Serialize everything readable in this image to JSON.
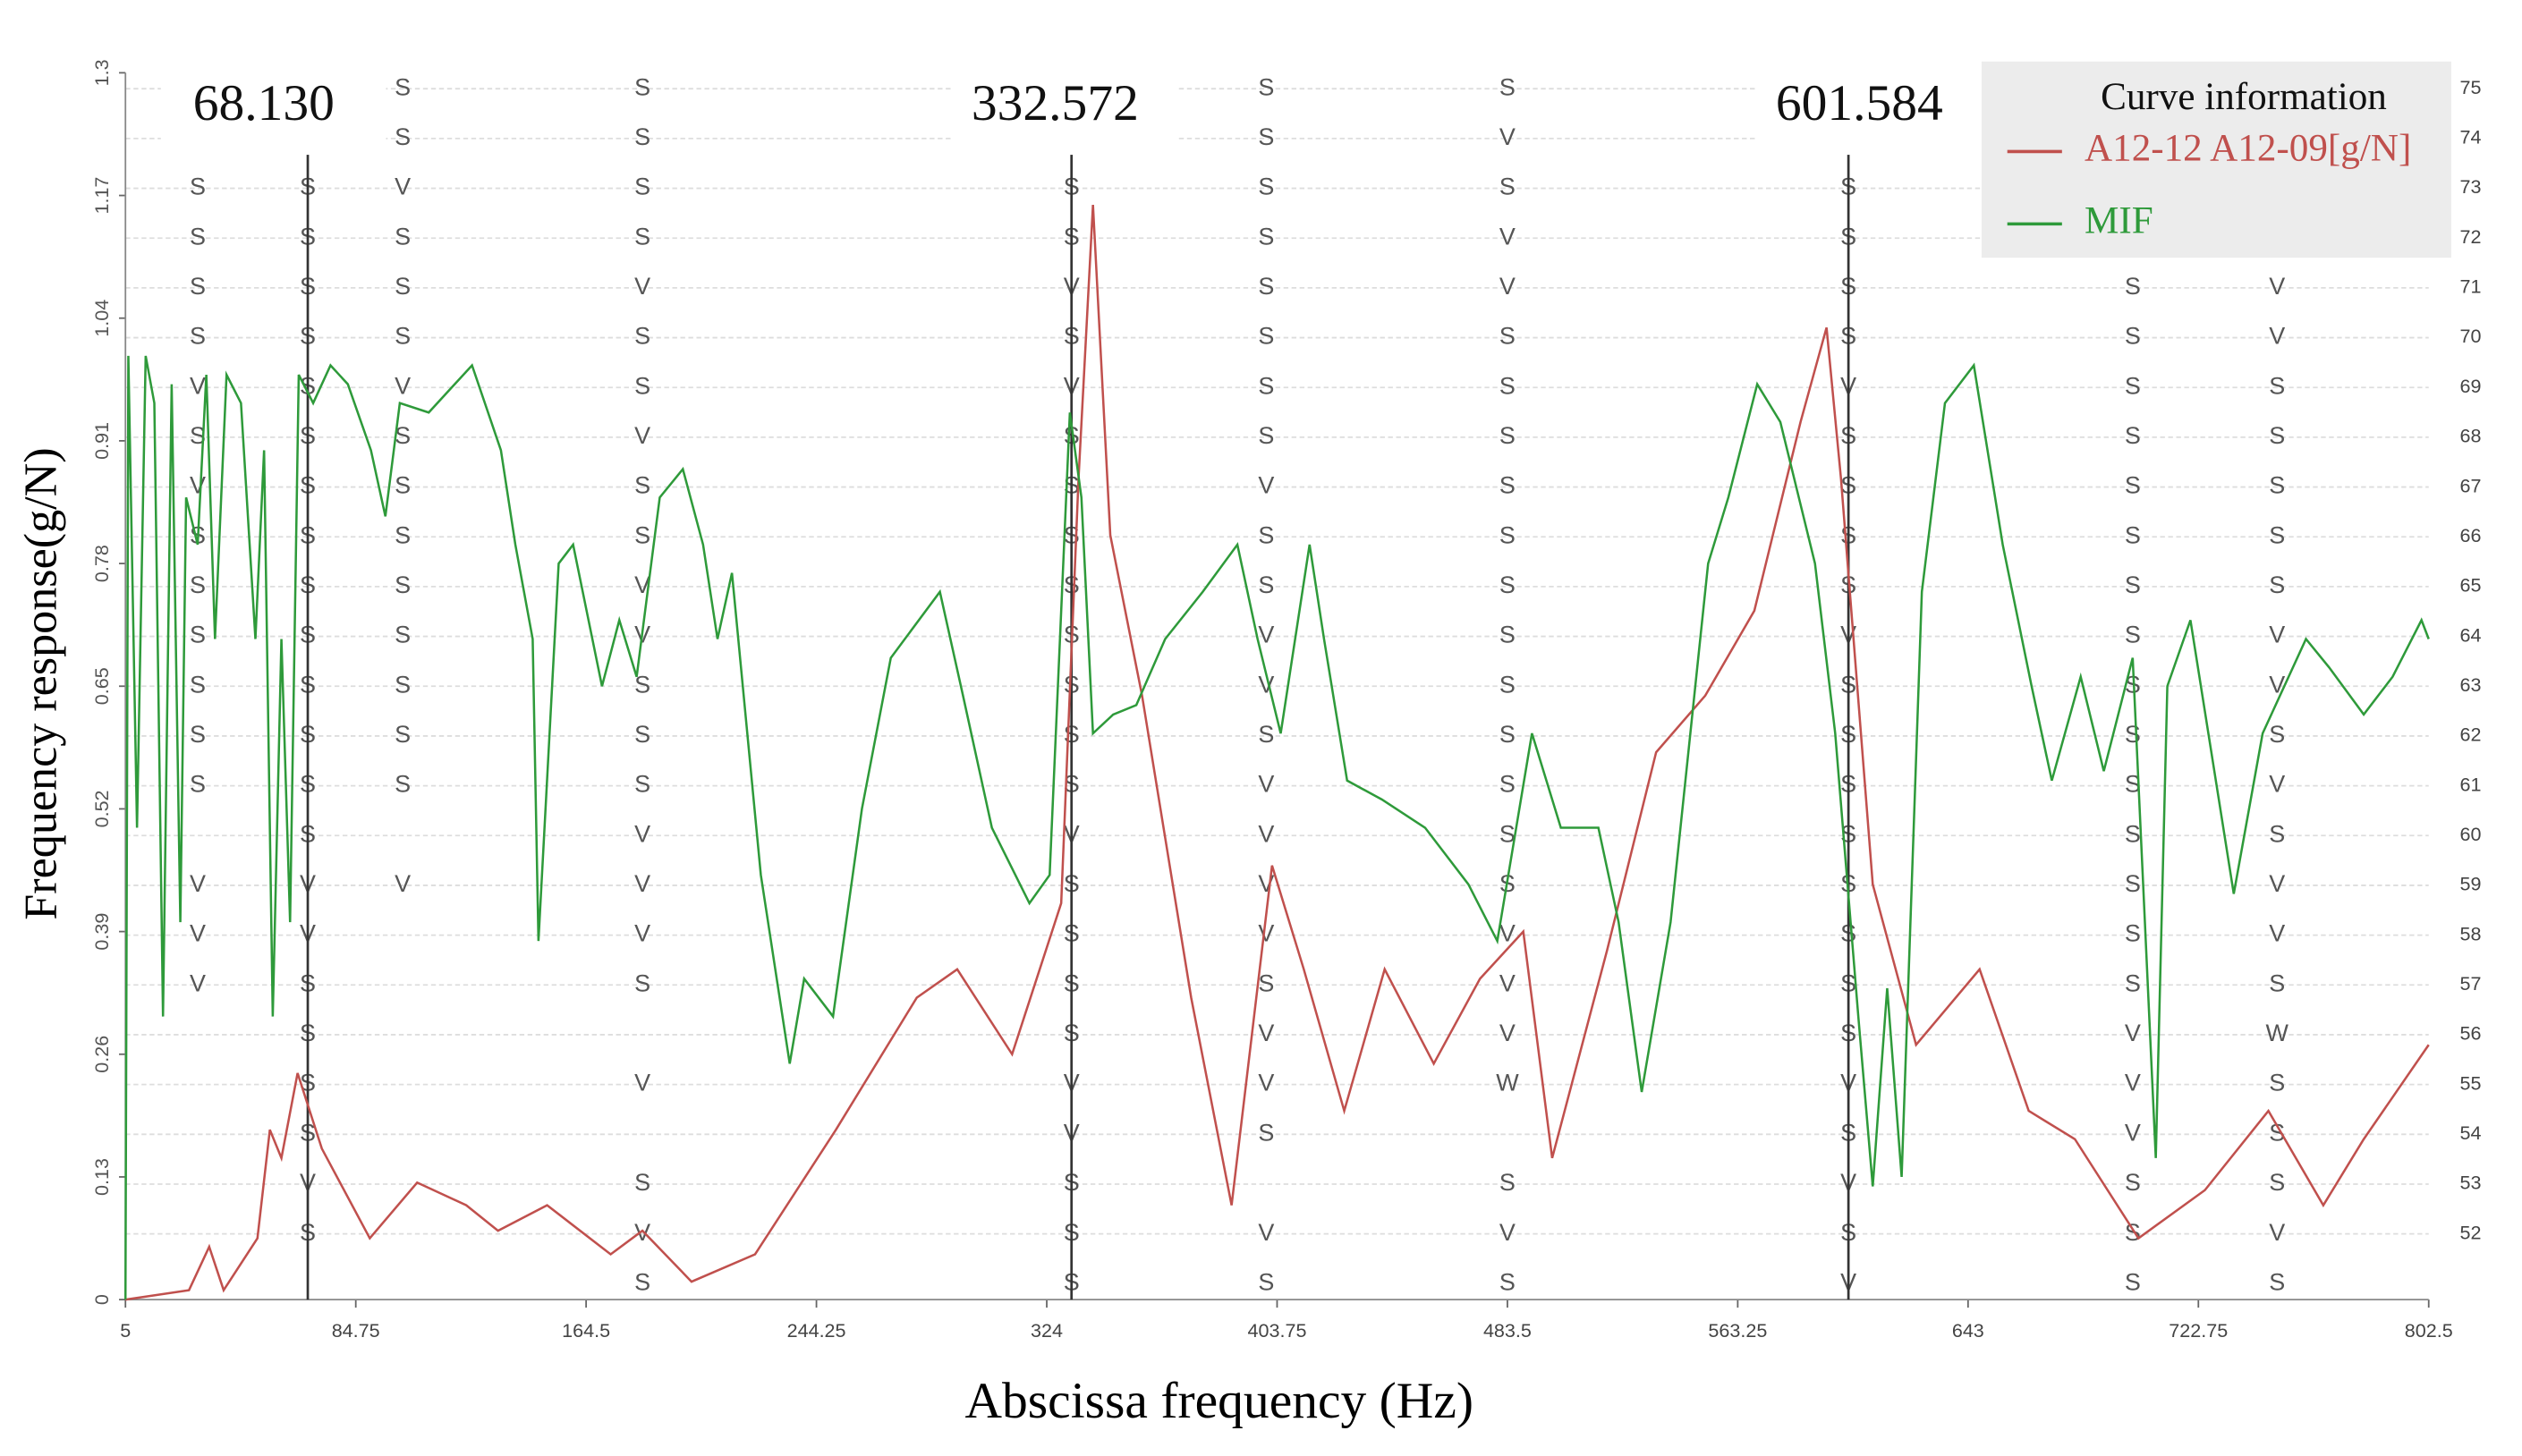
{
  "chart_data": {
    "type": "line",
    "ylabel": "Frequency response(g/N)",
    "xlabel": "Abscissa frequency (Hz)",
    "xlim": [
      5,
      802.5
    ],
    "ylim": [
      0,
      1.3
    ],
    "xticks": [
      5,
      84.75,
      164.5,
      244.25,
      324,
      403.75,
      483.5,
      563.25,
      643,
      722.75,
      802.5
    ],
    "yticks": [
      0,
      0.13,
      0.26,
      0.39,
      0.52,
      0.65,
      0.78,
      0.91,
      1.04,
      1.17,
      1.3
    ],
    "y2lim": [
      50.68,
      75.32
    ],
    "y2ticks": [
      52,
      53,
      54,
      55,
      56,
      57,
      58,
      59,
      60,
      61,
      62,
      63,
      64,
      65,
      66,
      67,
      68,
      69,
      70,
      71,
      72,
      73,
      74,
      75
    ],
    "grid": true,
    "legend_title": "Curve information",
    "cursors": [
      "68.130",
      "332.572",
      "601.584"
    ],
    "cursor_x": [
      68.13,
      332.572,
      601.584
    ],
    "series": [
      {
        "name": "A12-12 A12-09[g/N]",
        "color": "#c0504d",
        "x": [
          5,
          27,
          34,
          39,
          50.7,
          55,
          59,
          64.6,
          73,
          89.6,
          106,
          123,
          134,
          151,
          173,
          184,
          201,
          223,
          251,
          279,
          293,
          312,
          329,
          335,
          340,
          346,
          357,
          374,
          388,
          402,
          413,
          427,
          441,
          458,
          474,
          489,
          499,
          518,
          535,
          552,
          569,
          585,
          594,
          599,
          610,
          625,
          647,
          664,
          680,
          702,
          725,
          747,
          766,
          780,
          802.5
        ],
        "values": [
          0,
          0.01,
          0.056,
          0.01,
          0.065,
          0.18,
          0.15,
          0.24,
          0.16,
          0.065,
          0.124,
          0.1,
          0.073,
          0.1,
          0.048,
          0.073,
          0.019,
          0.048,
          0.18,
          0.32,
          0.35,
          0.26,
          0.42,
          0.87,
          1.16,
          0.81,
          0.64,
          0.32,
          0.1,
          0.46,
          0.35,
          0.2,
          0.35,
          0.25,
          0.34,
          0.39,
          0.15,
          0.37,
          0.58,
          0.64,
          0.73,
          0.93,
          1.03,
          0.87,
          0.44,
          0.27,
          0.35,
          0.2,
          0.17,
          0.065,
          0.116,
          0.2,
          0.1,
          0.17,
          0.27
        ]
      },
      {
        "name": "MIF",
        "color": "#2e9a3a",
        "x": [
          5,
          6,
          9,
          12,
          15,
          18,
          21,
          24,
          26,
          30,
          33,
          36,
          40,
          45,
          50,
          53,
          56,
          59,
          62,
          65,
          70,
          76,
          82,
          90,
          95,
          100,
          110,
          125,
          135,
          140,
          146,
          148,
          155,
          160,
          170,
          176,
          182,
          190,
          198,
          205,
          210,
          215,
          225,
          235,
          240,
          250,
          260,
          270,
          287,
          295,
          305,
          318,
          325,
          332,
          336,
          340,
          347,
          355,
          365,
          378,
          390,
          397,
          405,
          415,
          420,
          428,
          440,
          455,
          470,
          480,
          492,
          502,
          515,
          522,
          530,
          540,
          553,
          560,
          570,
          578,
          590,
          597,
          605,
          610,
          615,
          620,
          627,
          635,
          645,
          655,
          665,
          672,
          682,
          690,
          700,
          708,
          712,
          720,
          735,
          745,
          760,
          768,
          780,
          790,
          800,
          802.5
        ],
        "values": [
          0,
          1.0,
          0.5,
          1.0,
          0.95,
          0.3,
          0.97,
          0.4,
          0.85,
          0.8,
          0.98,
          0.7,
          0.98,
          0.95,
          0.7,
          0.9,
          0.3,
          0.7,
          0.4,
          0.98,
          0.95,
          0.99,
          0.97,
          0.9,
          0.83,
          0.95,
          0.94,
          0.99,
          0.9,
          0.8,
          0.7,
          0.38,
          0.78,
          0.8,
          0.65,
          0.72,
          0.66,
          0.85,
          0.88,
          0.8,
          0.7,
          0.77,
          0.45,
          0.25,
          0.34,
          0.3,
          0.52,
          0.68,
          0.75,
          0.64,
          0.5,
          0.42,
          0.45,
          0.94,
          0.85,
          0.6,
          0.62,
          0.63,
          0.7,
          0.75,
          0.8,
          0.7,
          0.6,
          0.8,
          0.7,
          0.55,
          0.53,
          0.5,
          0.44,
          0.38,
          0.6,
          0.5,
          0.5,
          0.4,
          0.22,
          0.4,
          0.78,
          0.85,
          0.97,
          0.93,
          0.78,
          0.6,
          0.3,
          0.12,
          0.33,
          0.13,
          0.75,
          0.95,
          0.99,
          0.8,
          0.65,
          0.55,
          0.66,
          0.56,
          0.68,
          0.15,
          0.65,
          0.72,
          0.43,
          0.6,
          0.7,
          0.67,
          0.62,
          0.66,
          0.72,
          0.7
        ]
      }
    ],
    "stability": [
      {
        "x": 30,
        "orders": [
          57,
          58,
          59,
          61,
          62,
          63,
          64,
          65,
          66,
          67,
          68,
          69,
          70,
          71,
          72,
          73
        ],
        "letters": [
          "V",
          "V",
          "V",
          "S",
          "S",
          "S",
          "S",
          "S",
          "S",
          "V",
          "S",
          "V",
          "S",
          "S",
          "S",
          "S"
        ]
      },
      {
        "x": 68.13,
        "orders": [
          52,
          53,
          54,
          55,
          56,
          57,
          58,
          59,
          60,
          61,
          62,
          63,
          64,
          65,
          66,
          67,
          68,
          69,
          70,
          71,
          72,
          73
        ],
        "letters": [
          "S",
          "V",
          "S",
          "S",
          "S",
          "S",
          "V",
          "V",
          "S",
          "S",
          "S",
          "S",
          "S",
          "S",
          "S",
          "S",
          "S",
          "S",
          "S",
          "S",
          "S",
          "S"
        ]
      },
      {
        "x": 101,
        "orders": [
          59,
          61,
          62,
          63,
          64,
          65,
          66,
          67,
          68,
          69,
          70,
          71,
          72,
          73,
          74,
          75
        ],
        "letters": [
          "V",
          "S",
          "S",
          "S",
          "S",
          "S",
          "S",
          "S",
          "S",
          "V",
          "S",
          "S",
          "S",
          "V",
          "S",
          "S"
        ]
      },
      {
        "x": 184,
        "orders": [
          51,
          52,
          53,
          55,
          57,
          58,
          59,
          60,
          61,
          62,
          63,
          64,
          65,
          66,
          67,
          68,
          69,
          70,
          71,
          72,
          73,
          74,
          75
        ],
        "letters": [
          "S",
          "V",
          "S",
          "V",
          "S",
          "V",
          "V",
          "V",
          "S",
          "S",
          "S",
          "V",
          "V",
          "S",
          "S",
          "V",
          "S",
          "S",
          "V",
          "S",
          "S",
          "S",
          "S"
        ]
      },
      {
        "x": 332.572,
        "orders": [
          51,
          52,
          53,
          54,
          55,
          56,
          57,
          58,
          59,
          60,
          61,
          62,
          63,
          64,
          65,
          66,
          67,
          68,
          69,
          70,
          71,
          72,
          73
        ],
        "letters": [
          "S",
          "S",
          "S",
          "V",
          "V",
          "S",
          "S",
          "S",
          "S",
          "V",
          "S",
          "S",
          "S",
          "S",
          "S",
          "S",
          "S",
          "S",
          "V",
          "S",
          "V",
          "S",
          "S"
        ]
      },
      {
        "x": 400,
        "orders": [
          51,
          52,
          54,
          55,
          56,
          57,
          58,
          59,
          60,
          61,
          62,
          63,
          64,
          65,
          66,
          67,
          68,
          69,
          70,
          71,
          72,
          73,
          74,
          75
        ],
        "letters": [
          "S",
          "V",
          "S",
          "V",
          "V",
          "S",
          "V",
          "V",
          "V",
          "V",
          "S",
          "V",
          "V",
          "S",
          "S",
          "V",
          "S",
          "S",
          "S",
          "S",
          "S",
          "S",
          "S",
          "S"
        ]
      },
      {
        "x": 483.5,
        "orders": [
          51,
          52,
          53,
          55,
          56,
          57,
          58,
          59,
          60,
          61,
          62,
          63,
          64,
          65,
          66,
          67,
          68,
          69,
          70,
          71,
          72,
          73,
          74,
          75
        ],
        "letters": [
          "S",
          "V",
          "S",
          "W",
          "V",
          "V",
          "V",
          "S",
          "S",
          "S",
          "S",
          "S",
          "S",
          "S",
          "S",
          "S",
          "S",
          "S",
          "S",
          "V",
          "V",
          "S",
          "V",
          "S"
        ]
      },
      {
        "x": 601.584,
        "orders": [
          51,
          52,
          53,
          54,
          55,
          56,
          57,
          58,
          59,
          60,
          61,
          62,
          63,
          64,
          65,
          66,
          67,
          68,
          69,
          70,
          71,
          72,
          73
        ],
        "letters": [
          "V",
          "S",
          "V",
          "S",
          "V",
          "S",
          "S",
          "S",
          "S",
          "S",
          "S",
          "S",
          "S",
          "V",
          "S",
          "S",
          "S",
          "S",
          "V",
          "S",
          "S",
          "S",
          "S"
        ]
      },
      {
        "x": 700,
        "orders": [
          51,
          52,
          53,
          54,
          55,
          56,
          57,
          58,
          59,
          60,
          61,
          62,
          63,
          64,
          65,
          66,
          67,
          68,
          69,
          70,
          71
        ],
        "letters": [
          "S",
          "S",
          "S",
          "V",
          "V",
          "V",
          "S",
          "S",
          "S",
          "S",
          "S",
          "S",
          "S",
          "S",
          "S",
          "S",
          "S",
          "S",
          "S",
          "S",
          "S"
        ]
      },
      {
        "x": 750,
        "orders": [
          51,
          52,
          53,
          54,
          55,
          56,
          57,
          58,
          59,
          60,
          61,
          62,
          63,
          64,
          65,
          66,
          67,
          68,
          69,
          70,
          71
        ],
        "letters": [
          "S",
          "V",
          "S",
          "S",
          "S",
          "W",
          "S",
          "V",
          "V",
          "S",
          "V",
          "S",
          "V",
          "V",
          "S",
          "S",
          "S",
          "S",
          "S",
          "V",
          "V"
        ]
      }
    ]
  }
}
